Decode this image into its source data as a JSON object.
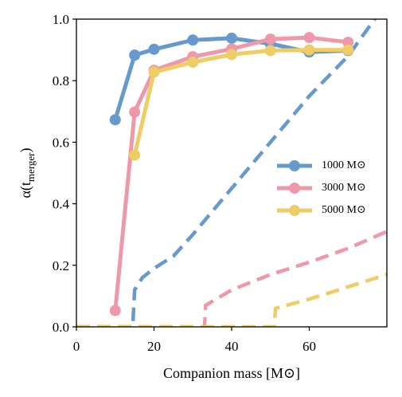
{
  "chart_data": {
    "type": "line",
    "xlabel": "Companion mass [M⊙]",
    "ylabel": [
      "α(t",
      "merger",
      ")"
    ],
    "xlim": [
      0,
      80
    ],
    "ylim": [
      0,
      1
    ],
    "xticks": [
      0,
      20,
      40,
      60
    ],
    "yticks": [
      {
        "value": 0,
        "label": "0.0"
      },
      {
        "value": 0.2,
        "label": "0.2"
      },
      {
        "value": 0.4,
        "label": "0.4"
      },
      {
        "value": 0.6,
        "label": "0.6"
      },
      {
        "value": 0.8,
        "label": "0.8"
      },
      {
        "value": 1,
        "label": "1.0"
      }
    ],
    "legend": "center right",
    "series": [
      {
        "color": "#6699cc",
        "linestyle": "dashed",
        "x": [
          0,
          14.5,
          15,
          17,
          20,
          25,
          30,
          40,
          50,
          60,
          70,
          78
        ],
        "values": [
          0,
          0,
          0.12,
          0.16,
          0.19,
          0.23,
          0.3,
          0.45,
          0.6,
          0.75,
          0.88,
          1.02
        ]
      },
      {
        "color": "#ee99aa",
        "linestyle": "dashed",
        "x": [
          0,
          33,
          33.3,
          40,
          50,
          60,
          70,
          80
        ],
        "values": [
          0,
          0,
          0.07,
          0.12,
          0.17,
          0.21,
          0.255,
          0.31
        ]
      },
      {
        "color": "#eecc66",
        "linestyle": "dashed",
        "x": [
          0,
          51,
          51.3,
          60,
          70,
          80
        ],
        "values": [
          0,
          0,
          0.06,
          0.09,
          0.13,
          0.17
        ]
      },
      {
        "name": "1000 M⊙",
        "color": "#6699cc",
        "linestyle": "solid",
        "x": [
          10,
          15,
          20,
          30,
          40,
          50,
          60,
          70
        ],
        "values": [
          0.673,
          0.883,
          0.902,
          0.932,
          0.938,
          0.92,
          0.893,
          0.898
        ]
      },
      {
        "name": "3000 M⊙",
        "color": "#ee99aa",
        "linestyle": "solid",
        "x": [
          10,
          15,
          20,
          30,
          40,
          50,
          60,
          70
        ],
        "values": [
          0.053,
          0.698,
          0.834,
          0.878,
          0.903,
          0.935,
          0.94,
          0.925
        ]
      },
      {
        "name": "5000 M⊙",
        "color": "#eecc66",
        "linestyle": "solid",
        "x": [
          15,
          20,
          30,
          40,
          50,
          60,
          70
        ],
        "values": [
          0.558,
          0.828,
          0.86,
          0.885,
          0.898,
          0.9,
          0.9
        ]
      }
    ]
  }
}
